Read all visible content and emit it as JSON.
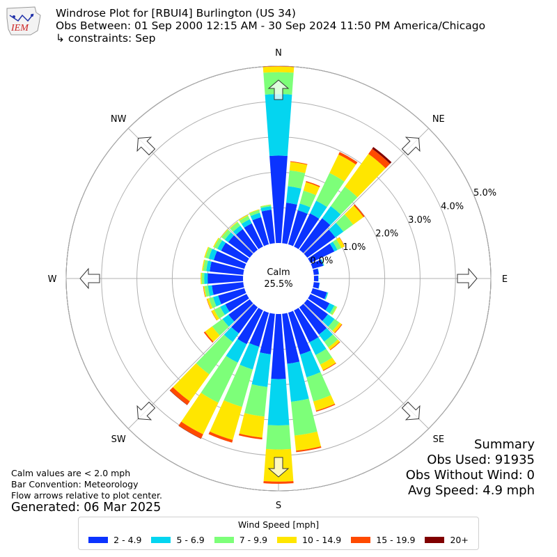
{
  "logo": {
    "text": "IEM"
  },
  "header": {
    "title": "Windrose Plot for [RBUI4] Burlington (US 34)",
    "subtitle": "Obs Between: 01 Sep 2000 12:15 AM - 30 Sep 2024 11:50 PM America/Chicago",
    "constraints": "↳ constraints: Sep"
  },
  "notes": {
    "calm_def": "Calm values are < 2.0 mph",
    "bar_convention": "Bar Convention: Meteorology",
    "flow_arrows": "Flow arrows relative to plot center.",
    "generated": "Generated: 06 Mar 2025"
  },
  "summary": {
    "title": "Summary",
    "obs_used": "Obs Used: 91935",
    "obs_without_wind": "Obs Without Wind: 0",
    "avg_speed": "Avg Speed: 4.9 mph"
  },
  "chart_data": {
    "type": "windrose",
    "calm_label": "Calm",
    "calm_value": "25.5%",
    "directions": [
      "N",
      "NE",
      "E",
      "SE",
      "S",
      "SW",
      "W",
      "NW"
    ],
    "radial_ticks": [
      "0.0%",
      "1.0%",
      "2.0%",
      "3.0%",
      "4.0%",
      "5.0%"
    ],
    "r_max": 5.0,
    "legend_title": "Wind Speed [mph]",
    "speed_bins": [
      {
        "label": "2 - 4.9",
        "color": "#0b33ff"
      },
      {
        "label": "5 - 6.9",
        "color": "#04d5f0"
      },
      {
        "label": "7 - 9.9",
        "color": "#7dff79"
      },
      {
        "label": "10 - 14.9",
        "color": "#ffe600"
      },
      {
        "label": "15 - 19.9",
        "color": "#ff4a00"
      },
      {
        "label": "20+",
        "color": "#800000"
      }
    ],
    "sectors": [
      {
        "dir": 0,
        "cum": [
          2.47,
          4.21,
          4.83,
          4.99,
          5.0,
          5.0
        ]
      },
      {
        "dir": 10,
        "cum": [
          1.15,
          1.62,
          2.07,
          2.31,
          2.33,
          2.33
        ]
      },
      {
        "dir": 20,
        "cum": [
          1.0,
          1.2,
          1.58,
          1.83,
          1.86,
          1.86
        ]
      },
      {
        "dir": 30,
        "cum": [
          1.04,
          1.44,
          2.31,
          2.89,
          2.97,
          2.97
        ]
      },
      {
        "dir": 40,
        "cum": [
          1.1,
          1.52,
          2.2,
          3.34,
          3.52,
          3.58
        ]
      },
      {
        "dir": 50,
        "cum": [
          0.98,
          1.26,
          1.6,
          1.96,
          2.0,
          2.0
        ]
      },
      {
        "dir": 60,
        "cum": [
          0.75,
          0.85,
          0.97,
          1.07,
          1.08,
          1.08
        ]
      },
      {
        "dir": 70,
        "cum": [
          0.31,
          0.33,
          0.34,
          0.34,
          0.34,
          0.34
        ]
      },
      {
        "dir": 80,
        "cum": [
          0.14,
          0.15,
          0.15,
          0.15,
          0.15,
          0.15
        ]
      },
      {
        "dir": 90,
        "cum": [
          0.12,
          0.13,
          0.13,
          0.13,
          0.13,
          0.13
        ]
      },
      {
        "dir": 100,
        "cum": [
          0.16,
          0.17,
          0.17,
          0.17,
          0.17,
          0.17
        ]
      },
      {
        "dir": 110,
        "cum": [
          0.42,
          0.45,
          0.46,
          0.46,
          0.46,
          0.46
        ]
      },
      {
        "dir": 120,
        "cum": [
          0.6,
          0.75,
          0.82,
          0.84,
          0.84,
          0.84
        ]
      },
      {
        "dir": 130,
        "cum": [
          0.72,
          0.95,
          1.12,
          1.2,
          1.22,
          1.22
        ]
      },
      {
        "dir": 140,
        "cum": [
          0.95,
          1.2,
          1.4,
          1.48,
          1.5,
          1.5
        ]
      },
      {
        "dir": 150,
        "cum": [
          1.0,
          1.4,
          1.7,
          1.88,
          1.9,
          1.9
        ]
      },
      {
        "dir": 160,
        "cum": [
          1.23,
          1.9,
          2.61,
          2.88,
          2.91,
          2.91
        ]
      },
      {
        "dir": 170,
        "cum": [
          1.42,
          2.5,
          3.46,
          3.89,
          3.93,
          3.93
        ]
      },
      {
        "dir": 180,
        "cum": [
          1.84,
          3.15,
          3.83,
          4.74,
          4.8,
          4.8
        ]
      },
      {
        "dir": 190,
        "cum": [
          1.15,
          2.08,
          2.92,
          3.52,
          3.57,
          3.57
        ]
      },
      {
        "dir": 200,
        "cum": [
          1.0,
          1.67,
          2.77,
          3.74,
          3.82,
          3.82
        ]
      },
      {
        "dir": 210,
        "cum": [
          1.06,
          1.64,
          2.9,
          3.89,
          4.02,
          4.03
        ]
      },
      {
        "dir": 220,
        "cum": [
          0.91,
          1.21,
          2.34,
          3.28,
          3.4,
          3.41
        ]
      },
      {
        "dir": 230,
        "cum": [
          0.74,
          0.95,
          1.31,
          1.56,
          1.6,
          1.6
        ]
      },
      {
        "dir": 240,
        "cum": [
          0.67,
          0.83,
          1.02,
          1.1,
          1.11,
          1.11
        ]
      },
      {
        "dir": 250,
        "cum": [
          0.77,
          0.92,
          1.04,
          1.1,
          1.11,
          1.11
        ]
      },
      {
        "dir": 260,
        "cum": [
          0.89,
          1.0,
          1.1,
          1.13,
          1.14,
          1.14
        ]
      },
      {
        "dir": 270,
        "cum": [
          1.0,
          1.1,
          1.17,
          1.2,
          1.2,
          1.2
        ]
      },
      {
        "dir": 280,
        "cum": [
          0.95,
          1.05,
          1.14,
          1.17,
          1.17,
          1.17
        ]
      },
      {
        "dir": 290,
        "cum": [
          0.9,
          1.05,
          1.15,
          1.18,
          1.18,
          1.18
        ]
      },
      {
        "dir": 300,
        "cum": [
          0.8,
          0.92,
          1.02,
          1.05,
          1.05,
          1.05
        ]
      },
      {
        "dir": 310,
        "cum": [
          0.75,
          0.87,
          0.98,
          1.0,
          1.0,
          1.0
        ]
      },
      {
        "dir": 320,
        "cum": [
          0.72,
          0.84,
          0.96,
          0.98,
          0.98,
          0.98
        ]
      },
      {
        "dir": 330,
        "cum": [
          0.73,
          0.86,
          0.97,
          1.0,
          1.0,
          1.0
        ]
      },
      {
        "dir": 340,
        "cum": [
          0.8,
          0.93,
          1.01,
          1.03,
          1.03,
          1.03
        ]
      },
      {
        "dir": 350,
        "cum": [
          0.95,
          1.05,
          1.09,
          1.1,
          1.1,
          1.1
        ]
      }
    ]
  }
}
